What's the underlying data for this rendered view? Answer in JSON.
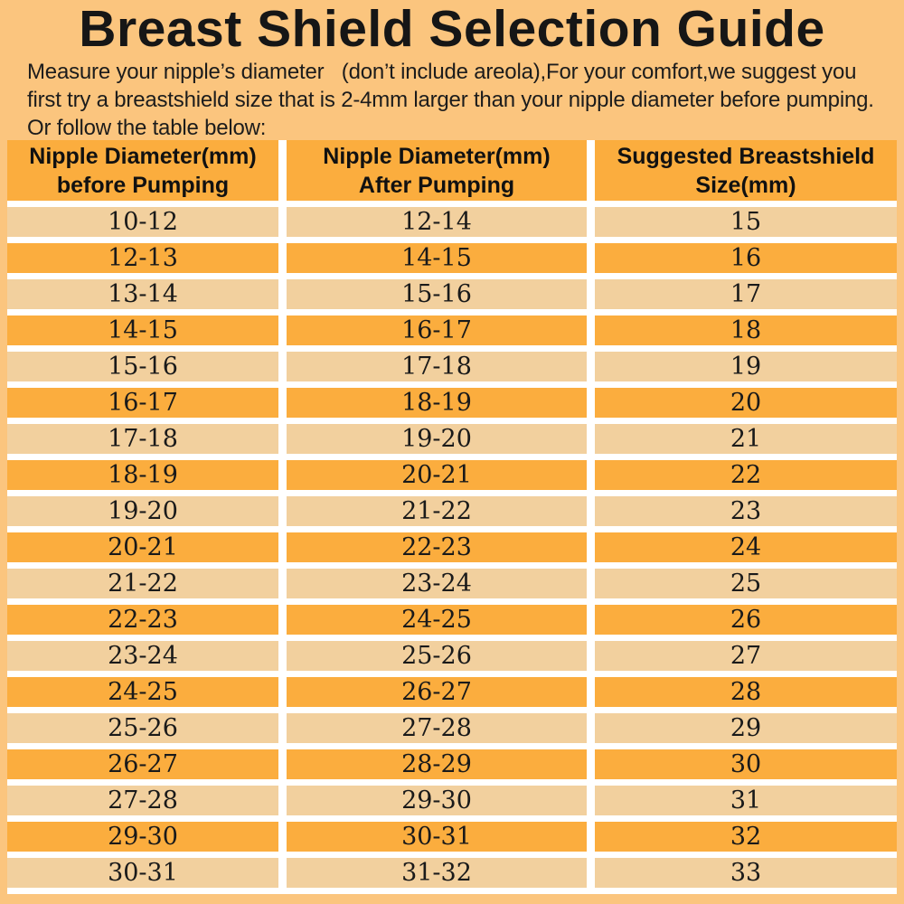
{
  "page": {
    "title": "Breast Shield Selection Guide",
    "intro_lines": [
      "Measure your nipple’s diameter   (don’t include areola),For your comfort,we suggest you",
      "first try a breastshield size that is 2-4mm larger than your nipple diameter before pumping.",
      "Or follow the table below:"
    ]
  },
  "colors": {
    "page_background": "#FBC57E",
    "accent_orange": "#FBAD3E",
    "row_tan": "#F2D09E",
    "separator_white": "#FFFFFF",
    "text_black": "#141414"
  },
  "table": {
    "headers": [
      {
        "line1": "Nipple Diameter(mm)",
        "line2": "before Pumping"
      },
      {
        "line1": "Nipple Diameter(mm)",
        "line2": "After Pumping"
      },
      {
        "line1": "Suggested Breastshield",
        "line2": "Size(mm)"
      }
    ],
    "rows": [
      [
        "10-12",
        "12-14",
        "15"
      ],
      [
        "12-13",
        "14-15",
        "16"
      ],
      [
        "13-14",
        "15-16",
        "17"
      ],
      [
        "14-15",
        "16-17",
        "18"
      ],
      [
        "15-16",
        "17-18",
        "19"
      ],
      [
        "16-17",
        "18-19",
        "20"
      ],
      [
        "17-18",
        "19-20",
        "21"
      ],
      [
        "18-19",
        "20-21",
        "22"
      ],
      [
        "19-20",
        "21-22",
        "23"
      ],
      [
        "20-21",
        "22-23",
        "24"
      ],
      [
        "21-22",
        "23-24",
        "25"
      ],
      [
        "22-23",
        "24-25",
        "26"
      ],
      [
        "23-24",
        "25-26",
        "27"
      ],
      [
        "24-25",
        "26-27",
        "28"
      ],
      [
        "25-26",
        "27-28",
        "29"
      ],
      [
        "26-27",
        "28-29",
        "30"
      ],
      [
        "27-28",
        "29-30",
        "31"
      ],
      [
        "29-30",
        "30-31",
        "32"
      ],
      [
        "30-31",
        "31-32",
        "33"
      ]
    ]
  }
}
